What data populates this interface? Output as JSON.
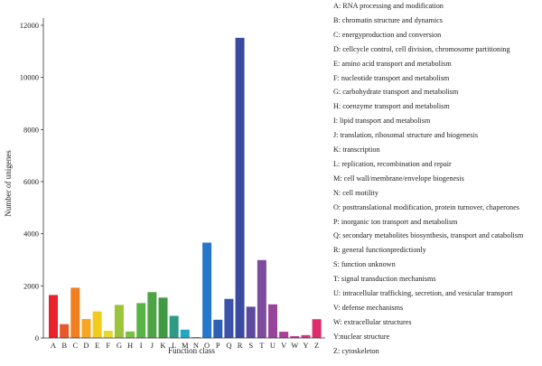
{
  "chart_data": {
    "type": "bar",
    "xlabel": "Function class",
    "ylabel": "Number of unigenes",
    "ylim": [
      0,
      12000
    ],
    "yticks": [
      0,
      2000,
      4000,
      6000,
      8000,
      10000,
      12000
    ],
    "categories": [
      "A",
      "B",
      "C",
      "D",
      "E",
      "F",
      "G",
      "H",
      "I",
      "J",
      "K",
      "L",
      "M",
      "N",
      "O",
      "P",
      "Q",
      "R",
      "S",
      "T",
      "U",
      "V",
      "W",
      "Y",
      "Z"
    ],
    "values": [
      1650,
      530,
      1930,
      730,
      1020,
      280,
      1270,
      250,
      1340,
      1760,
      1550,
      850,
      320,
      30,
      3660,
      700,
      1500,
      11520,
      1200,
      2990,
      1290,
      240,
      70,
      110,
      720
    ],
    "colors": [
      "#e8212b",
      "#e8582b",
      "#f07f1f",
      "#f6a623",
      "#f2cc1d",
      "#e3d931",
      "#9cc43a",
      "#7ac143",
      "#5bb447",
      "#4ea345",
      "#3f9a43",
      "#2e9a86",
      "#25a7c4",
      "#2b8fd0",
      "#2677c9",
      "#2f5fb5",
      "#3a52a8",
      "#3a4aa0",
      "#5d4a9f",
      "#7d4b9d",
      "#97459a",
      "#ad3e95",
      "#c03a8c",
      "#d73684",
      "#e02b6a"
    ],
    "legend": [
      "A: RNA processing and modification",
      "B: chromatin structure and dynamics",
      "C: energyproduction and conversion",
      "D: cellcycle control, cell division, chromosome partitioning",
      "E: amino acid transport and metabolism",
      "F: nucleotide transport and metabolism",
      "G: carbohydrate transport and metabolism",
      "H: coenzyme transport and metabolism",
      "I: lipid transport and metabolism",
      "J: translation, ribosomal structure and biogenesis",
      "K: transcription",
      "L: replication, recombination and repair",
      "M: cell wall/membrane/envelope biogenesis",
      "N: cell motility",
      "O: posttranslational modification, protein turnover, chaperones",
      "P: inorganic ion transport and metabolism",
      "Q: secondary metabolites biosynthesis, transport and catabolism",
      "R: general functionpredictionly",
      "S: function unknown",
      "T: signal transduction mechanisms",
      "U: intracellular trafficking, secretion, and vesicular transport",
      "V: defense mechanisms",
      "W: extracellular structures",
      "Y:nuclear structure",
      "Z: cytoskeleton"
    ]
  }
}
